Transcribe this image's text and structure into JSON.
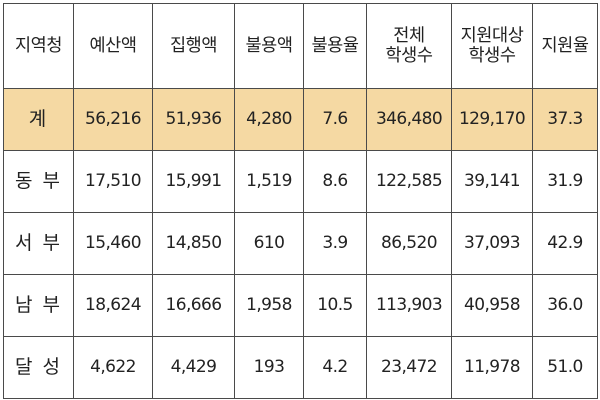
{
  "table": {
    "headers": [
      {
        "key": "region",
        "lines": [
          "지역청"
        ]
      },
      {
        "key": "budget",
        "lines": [
          "예산액"
        ]
      },
      {
        "key": "executed",
        "lines": [
          "집행액"
        ]
      },
      {
        "key": "unused",
        "lines": [
          "불용액"
        ]
      },
      {
        "key": "unused_rate",
        "lines": [
          "불용율"
        ]
      },
      {
        "key": "total_students",
        "lines": [
          "전체",
          "학생수"
        ]
      },
      {
        "key": "target_students",
        "lines": [
          "지원대상",
          "학생수"
        ]
      },
      {
        "key": "support_rate",
        "lines": [
          "지원율"
        ]
      }
    ],
    "rows": [
      {
        "type": "total",
        "cells": [
          "계",
          "56,216",
          "51,936",
          "4,280",
          "7.6",
          "346,480",
          "129,170",
          "37.3"
        ]
      },
      {
        "type": "region",
        "cells": [
          "동 부",
          "17,510",
          "15,991",
          "1,519",
          "8.6",
          "122,585",
          "39,141",
          "31.9"
        ]
      },
      {
        "type": "region",
        "cells": [
          "서 부",
          "15,460",
          "14,850",
          "610",
          "3.9",
          "86,520",
          "37,093",
          "42.9"
        ]
      },
      {
        "type": "region",
        "cells": [
          "남 부",
          "18,624",
          "16,666",
          "1,958",
          "10.5",
          "113,903",
          "40,958",
          "36.0"
        ]
      },
      {
        "type": "region",
        "cells": [
          "달 성",
          "4,622",
          "4,429",
          "193",
          "4.2",
          "23,472",
          "11,978",
          "51.0"
        ]
      }
    ],
    "colors": {
      "total_row_background": "#f5d9a3",
      "border": "#4a4a4a"
    }
  }
}
